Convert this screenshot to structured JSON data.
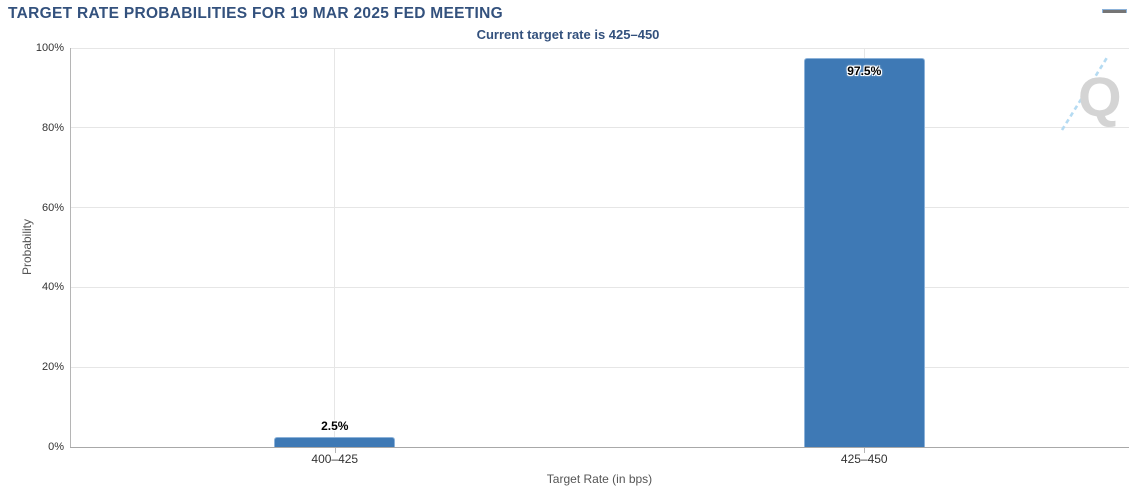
{
  "header": {
    "title": "TARGET RATE PROBABILITIES FOR 19 MAR 2025 FED MEETING",
    "menu_icon": "hamburger-icon"
  },
  "chart_data": {
    "type": "bar",
    "title": "TARGET RATE PROBABILITIES FOR 19 MAR 2025 FED MEETING",
    "subtitle": "Current target rate is 425–450",
    "categories": [
      "400–425",
      "425–450"
    ],
    "values": [
      2.5,
      97.5
    ],
    "value_labels": [
      "2.5%",
      "97.5%"
    ],
    "xlabel": "Target Rate (in bps)",
    "ylabel": "Probability",
    "ylim": [
      0,
      100
    ],
    "yticks": [
      0,
      20,
      40,
      60,
      80,
      100
    ],
    "ytick_labels": [
      "0%",
      "20%",
      "40%",
      "60%",
      "80%",
      "100%"
    ],
    "grid": true,
    "legend": "none",
    "bar_color": "#3e79b5"
  },
  "watermark": {
    "letter": "Q",
    "q_color": "#d4d4d4",
    "dash_color": "#b5dbf2"
  },
  "colors": {
    "title_navy": "#33517d",
    "tick_label": "#333333",
    "axis_title": "#555555",
    "gridline": "#e6e6e6",
    "axis_line": "#a8a8a8",
    "menu_gray": "#757575"
  }
}
